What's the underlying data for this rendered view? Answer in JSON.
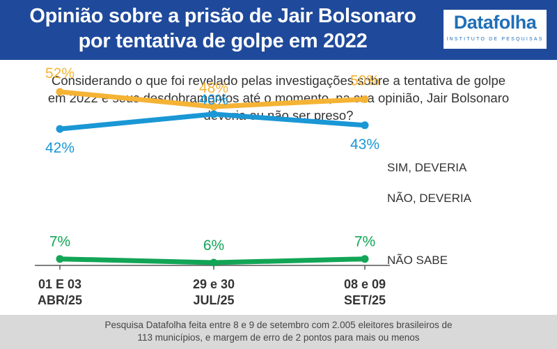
{
  "header": {
    "title_line1": "Opinião sobre a prisão de Jair Bolsonaro",
    "title_line2": "por tentativa de golpe em 2022",
    "logo_text": "Datafolha",
    "logo_subtext": "INSTITUTO DE PESQUISAS"
  },
  "question": "Considerando o que foi revelado pelas investigações sobre a tentativa de golpe em 2022 e seus desdobramentos até o momento, na sua opinião, Jair Bolsonaro deveria ou não ser preso?",
  "footer": {
    "line1": "Pesquisa Datafolha feita entre 8 e 9 de setembro com 2.005 eleitores brasileiros de",
    "line2": "113 municípios, e margem de erro de 2 pontos para mais ou menos"
  },
  "chart_data": {
    "type": "line",
    "x": [
      [
        "01 E 03",
        "ABR/25"
      ],
      [
        "29 e 30",
        "JUL/25"
      ],
      [
        "08 e 09",
        "SET/25"
      ]
    ],
    "series": [
      {
        "name": "SIM, DEVERIA",
        "values": [
          52,
          48,
          50
        ],
        "labels": [
          "52%",
          "48%",
          "50%"
        ],
        "color": "#f5b335"
      },
      {
        "name": "NÃO, DEVERIA",
        "values": [
          42,
          46,
          43
        ],
        "labels": [
          "42%",
          "46%",
          "43%"
        ],
        "color": "#1a97d5"
      },
      {
        "name": "NÃO SABE",
        "values": [
          7,
          6,
          7
        ],
        "labels": [
          "7%",
          "6%",
          "7%"
        ],
        "color": "#12a556"
      }
    ],
    "legend": "right",
    "grid": false,
    "ylim": [
      0,
      60
    ]
  }
}
